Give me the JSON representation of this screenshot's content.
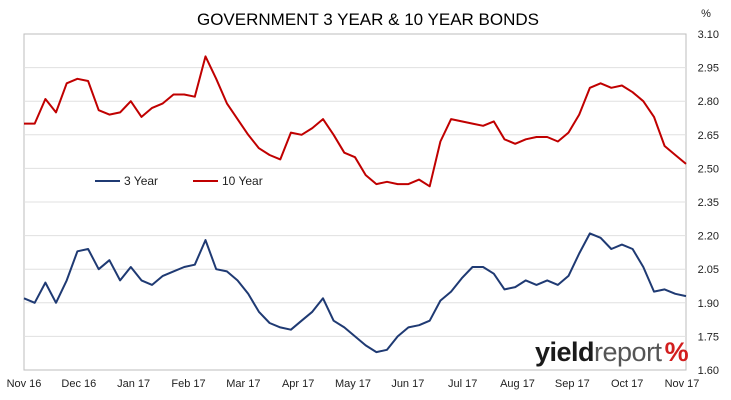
{
  "chart_data": {
    "type": "line",
    "title": "GOVERNMENT 3 YEAR & 10 YEAR BONDS",
    "y_unit_label": "%",
    "ylim": [
      1.6,
      3.1
    ],
    "y_ticks": [
      "3.10",
      "2.95",
      "2.80",
      "2.65",
      "2.50",
      "2.35",
      "2.20",
      "2.05",
      "1.90",
      "1.75",
      "1.60"
    ],
    "x_ticks": [
      "Nov 16",
      "Dec 16",
      "Jan 17",
      "Feb 17",
      "Mar 17",
      "Apr 17",
      "May 17",
      "Jun 17",
      "Jul 17",
      "Aug 17",
      "Sep 17",
      "Oct 17",
      "Nov 17"
    ],
    "grid": "horizontal",
    "legend_position": "center-left",
    "series": [
      {
        "name": "3 Year",
        "color": "#1f3a73",
        "values": [
          1.92,
          1.9,
          1.99,
          1.9,
          2.0,
          2.13,
          2.14,
          2.05,
          2.09,
          2.0,
          2.06,
          2.0,
          1.98,
          2.02,
          2.04,
          2.06,
          2.07,
          2.18,
          2.05,
          2.04,
          2.0,
          1.94,
          1.86,
          1.81,
          1.79,
          1.78,
          1.82,
          1.86,
          1.92,
          1.82,
          1.79,
          1.75,
          1.71,
          1.68,
          1.69,
          1.75,
          1.79,
          1.8,
          1.82,
          1.91,
          1.95,
          2.01,
          2.06,
          2.06,
          2.03,
          1.96,
          1.97,
          2.0,
          1.98,
          2.0,
          1.98,
          2.02,
          2.12,
          2.21,
          2.19,
          2.14,
          2.16,
          2.14,
          2.06,
          1.95,
          1.96,
          1.94,
          1.93
        ]
      },
      {
        "name": "10 Year",
        "color": "#c00000",
        "values": [
          2.7,
          2.7,
          2.81,
          2.75,
          2.88,
          2.9,
          2.89,
          2.76,
          2.74,
          2.75,
          2.8,
          2.73,
          2.77,
          2.79,
          2.83,
          2.83,
          2.82,
          3.0,
          2.9,
          2.79,
          2.72,
          2.65,
          2.59,
          2.56,
          2.54,
          2.66,
          2.65,
          2.68,
          2.72,
          2.65,
          2.57,
          2.55,
          2.47,
          2.43,
          2.44,
          2.43,
          2.43,
          2.45,
          2.42,
          2.62,
          2.72,
          2.71,
          2.7,
          2.69,
          2.71,
          2.63,
          2.61,
          2.63,
          2.64,
          2.64,
          2.62,
          2.66,
          2.74,
          2.86,
          2.88,
          2.86,
          2.87,
          2.84,
          2.8,
          2.73,
          2.6,
          2.56,
          2.52
        ]
      }
    ]
  },
  "branding": {
    "logo_word_bold": "yield",
    "logo_word_light": "report",
    "logo_symbol": "%"
  }
}
